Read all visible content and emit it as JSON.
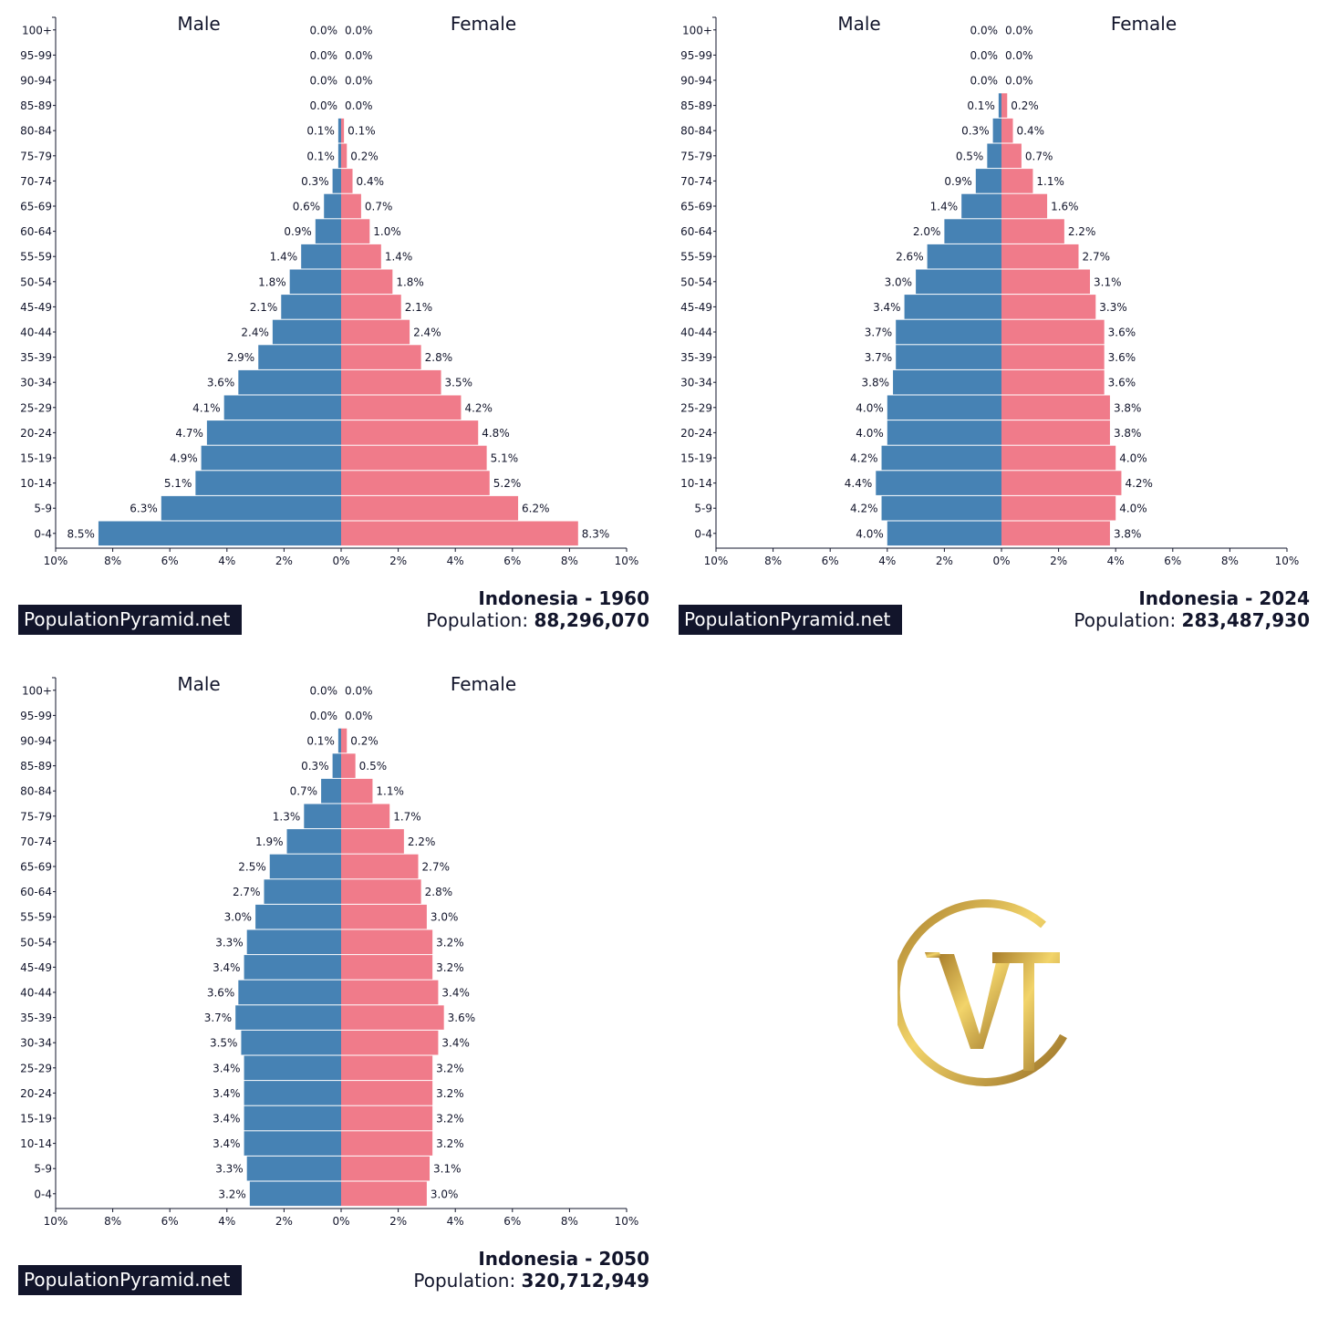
{
  "colors": {
    "male": "#4682b4",
    "female": "#f07b8a",
    "text": "#12152b",
    "brand_bg": "#12152b"
  },
  "logo": {
    "name": "vt-monogram-logo",
    "text": "VT",
    "color": "#c9a13b"
  },
  "chart_data": [
    {
      "type": "bar",
      "orientation": "horizontal-pyramid",
      "title": "Indonesia - 1960",
      "population_label": "Population:",
      "population": "88,296,070",
      "brand": "PopulationPyramid.net",
      "male_label": "Male",
      "female_label": "Female",
      "categories": [
        "100+",
        "95-99",
        "90-94",
        "85-89",
        "80-84",
        "75-79",
        "70-74",
        "65-69",
        "60-64",
        "55-59",
        "50-54",
        "45-49",
        "40-44",
        "35-39",
        "30-34",
        "25-29",
        "20-24",
        "15-19",
        "10-14",
        "5-9",
        "0-4"
      ],
      "series": [
        {
          "name": "Male",
          "values": [
            0.0,
            0.0,
            0.0,
            0.0,
            0.1,
            0.1,
            0.3,
            0.6,
            0.9,
            1.4,
            1.8,
            2.1,
            2.4,
            2.9,
            3.6,
            4.1,
            4.7,
            4.9,
            5.1,
            6.3,
            8.5
          ]
        },
        {
          "name": "Female",
          "values": [
            0.0,
            0.0,
            0.0,
            0.0,
            0.1,
            0.2,
            0.4,
            0.7,
            1.0,
            1.4,
            1.8,
            2.1,
            2.4,
            2.8,
            3.5,
            4.2,
            4.8,
            5.1,
            5.2,
            6.2,
            8.3
          ]
        }
      ],
      "xticks": [
        "10%",
        "8%",
        "6%",
        "4%",
        "2%",
        "0%",
        "2%",
        "4%",
        "6%",
        "8%",
        "10%"
      ],
      "xlim": [
        -10,
        10
      ],
      "unit": "%"
    },
    {
      "type": "bar",
      "orientation": "horizontal-pyramid",
      "title": "Indonesia - 2024",
      "population_label": "Population:",
      "population": "283,487,930",
      "brand": "PopulationPyramid.net",
      "male_label": "Male",
      "female_label": "Female",
      "categories": [
        "100+",
        "95-99",
        "90-94",
        "85-89",
        "80-84",
        "75-79",
        "70-74",
        "65-69",
        "60-64",
        "55-59",
        "50-54",
        "45-49",
        "40-44",
        "35-39",
        "30-34",
        "25-29",
        "20-24",
        "15-19",
        "10-14",
        "5-9",
        "0-4"
      ],
      "series": [
        {
          "name": "Male",
          "values": [
            0.0,
            0.0,
            0.0,
            0.1,
            0.3,
            0.5,
            0.9,
            1.4,
            2.0,
            2.6,
            3.0,
            3.4,
            3.7,
            3.7,
            3.8,
            4.0,
            4.0,
            4.2,
            4.4,
            4.2,
            4.0
          ]
        },
        {
          "name": "Female",
          "values": [
            0.0,
            0.0,
            0.0,
            0.2,
            0.4,
            0.7,
            1.1,
            1.6,
            2.2,
            2.7,
            3.1,
            3.3,
            3.6,
            3.6,
            3.6,
            3.8,
            3.8,
            4.0,
            4.2,
            4.0,
            3.8
          ]
        }
      ],
      "xticks": [
        "10%",
        "8%",
        "6%",
        "4%",
        "2%",
        "0%",
        "2%",
        "4%",
        "6%",
        "8%",
        "10%"
      ],
      "xlim": [
        -10,
        10
      ],
      "unit": "%"
    },
    {
      "type": "bar",
      "orientation": "horizontal-pyramid",
      "title": "Indonesia - 2050",
      "population_label": "Population:",
      "population": "320,712,949",
      "brand": "PopulationPyramid.net",
      "male_label": "Male",
      "female_label": "Female",
      "categories": [
        "100+",
        "95-99",
        "90-94",
        "85-89",
        "80-84",
        "75-79",
        "70-74",
        "65-69",
        "60-64",
        "55-59",
        "50-54",
        "45-49",
        "40-44",
        "35-39",
        "30-34",
        "25-29",
        "20-24",
        "15-19",
        "10-14",
        "5-9",
        "0-4"
      ],
      "series": [
        {
          "name": "Male",
          "values": [
            0.0,
            0.0,
            0.1,
            0.3,
            0.7,
            1.3,
            1.9,
            2.5,
            2.7,
            3.0,
            3.3,
            3.4,
            3.6,
            3.7,
            3.5,
            3.4,
            3.4,
            3.4,
            3.4,
            3.3,
            3.2
          ]
        },
        {
          "name": "Female",
          "values": [
            0.0,
            0.0,
            0.2,
            0.5,
            1.1,
            1.7,
            2.2,
            2.7,
            2.8,
            3.0,
            3.2,
            3.2,
            3.4,
            3.6,
            3.4,
            3.2,
            3.2,
            3.2,
            3.2,
            3.1,
            3.0
          ]
        }
      ],
      "xticks": [
        "10%",
        "8%",
        "6%",
        "4%",
        "2%",
        "0%",
        "2%",
        "4%",
        "6%",
        "8%",
        "10%"
      ],
      "xlim": [
        -10,
        10
      ],
      "unit": "%"
    }
  ]
}
